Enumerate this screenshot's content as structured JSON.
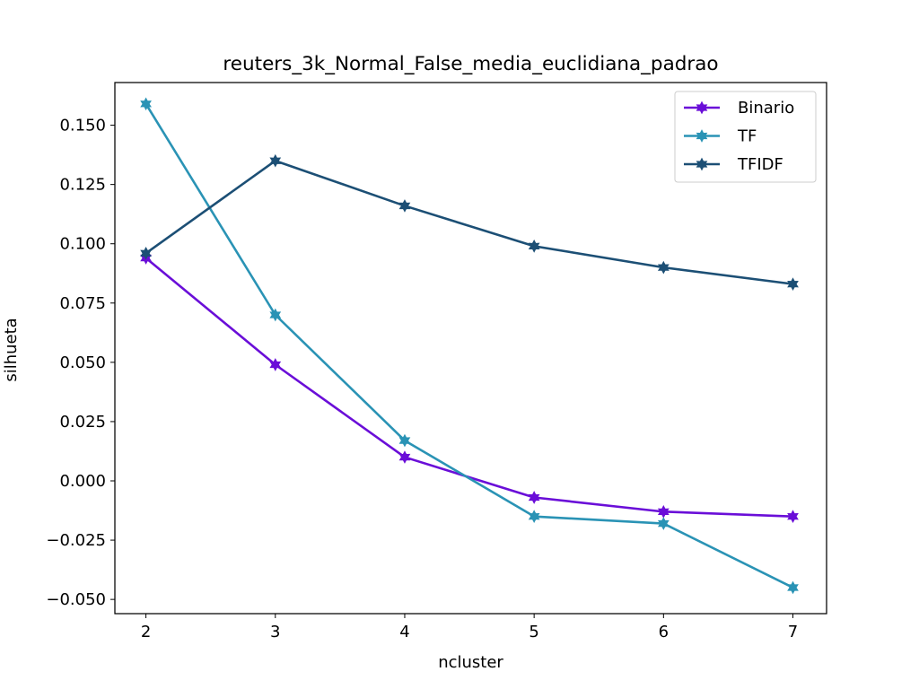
{
  "chart_data": {
    "type": "line",
    "title": "reuters_3k_Normal_False_media_euclidiana_padrao",
    "xlabel": "ncluster",
    "ylabel": "silhueta",
    "x": [
      2,
      3,
      4,
      5,
      6,
      7
    ],
    "xlim": [
      1.76,
      7.26
    ],
    "ylim": [
      -0.056,
      0.168
    ],
    "x_ticks": [
      2,
      3,
      4,
      5,
      6,
      7
    ],
    "x_tick_labels": [
      "2",
      "3",
      "4",
      "5",
      "6",
      "7"
    ],
    "y_ticks": [
      -0.05,
      -0.025,
      0.0,
      0.025,
      0.05,
      0.075,
      0.1,
      0.125,
      0.15
    ],
    "y_tick_labels": [
      "−0.050",
      "−0.025",
      "0.000",
      "0.025",
      "0.050",
      "0.075",
      "0.100",
      "0.125",
      "0.150"
    ],
    "grid": false,
    "legend_position": "top-right",
    "series": [
      {
        "name": "Binario",
        "color": "#6a0ed8",
        "values": [
          0.094,
          0.049,
          0.01,
          -0.007,
          -0.013,
          -0.015
        ]
      },
      {
        "name": "TF",
        "color": "#2a93b5",
        "values": [
          0.159,
          0.07,
          0.017,
          -0.015,
          -0.018,
          -0.045
        ]
      },
      {
        "name": "TFIDF",
        "color": "#1c4f75",
        "values": [
          0.096,
          0.135,
          0.116,
          0.099,
          0.09,
          0.083
        ]
      }
    ]
  }
}
